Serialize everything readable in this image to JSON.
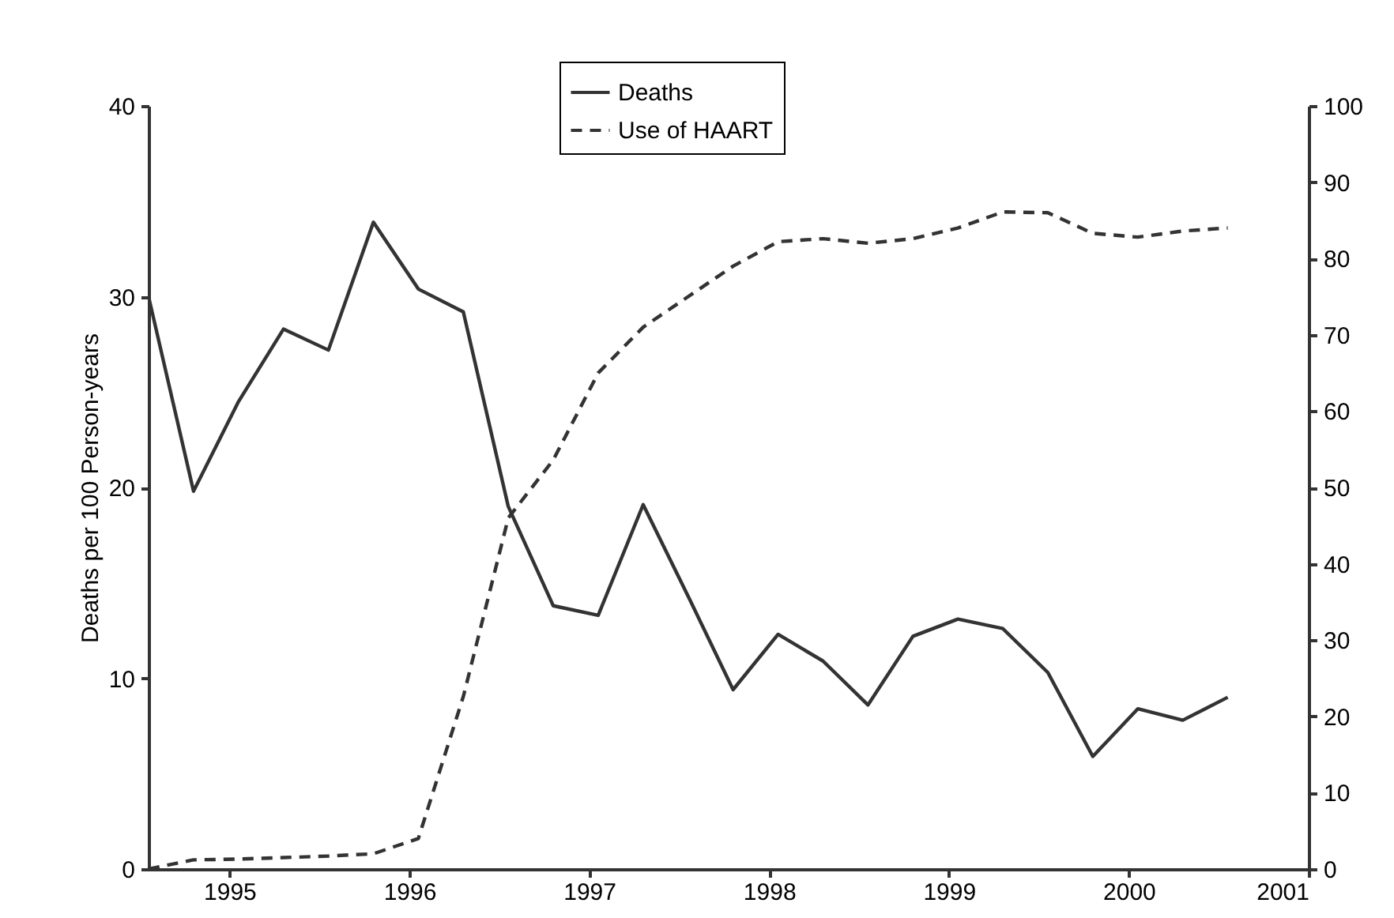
{
  "chart_data": {
    "type": "line",
    "ylabel": "Deaths per 100 Person-years",
    "x": [
      1994.55,
      1994.8,
      1995.05,
      1995.3,
      1995.55,
      1995.8,
      1996.05,
      1996.3,
      1996.55,
      1996.8,
      1997.05,
      1997.3,
      1997.55,
      1997.8,
      1998.05,
      1998.3,
      1998.55,
      1998.8,
      1999.05,
      1999.3,
      1999.55,
      1999.8,
      2000.05,
      2000.3,
      2000.55
    ],
    "series": [
      {
        "name": "Deaths",
        "color": "#333333",
        "line_style": "solid",
        "values": [
          30,
          19.8,
          24.5,
          28.3,
          27.2,
          33.9,
          30.4,
          29.2,
          19,
          13.8,
          13.3,
          19.1,
          14.3,
          9.4,
          12.3,
          10.9,
          8.6,
          12.2,
          13.1,
          12.6,
          10.3,
          5.9,
          8.4,
          7.8,
          9
        ]
      },
      {
        "name": "Use of HAART",
        "color": "#333333",
        "line_style": "dashed",
        "axis": "y2",
        "values": [
          0,
          1.2,
          1.3,
          1.5,
          1.7,
          2,
          4,
          22.6,
          46,
          53.6,
          65,
          71,
          75,
          79,
          82.2,
          82.6,
          82,
          82.6,
          84,
          86.1,
          86,
          83.3,
          82.8,
          83.6,
          84
        ]
      }
    ],
    "xlim": [
      1994.55,
      2001
    ],
    "xticks": [
      1995,
      1996,
      1997,
      1998,
      1999,
      2000,
      2001
    ],
    "ylim": [
      0,
      40
    ],
    "yticks": [
      0,
      10,
      20,
      30,
      40
    ],
    "y2lim": [
      0,
      100
    ],
    "y2ticks": [
      0,
      10,
      20,
      30,
      40,
      50,
      60,
      70,
      80,
      90,
      100
    ],
    "grid": false,
    "legend": "top"
  }
}
